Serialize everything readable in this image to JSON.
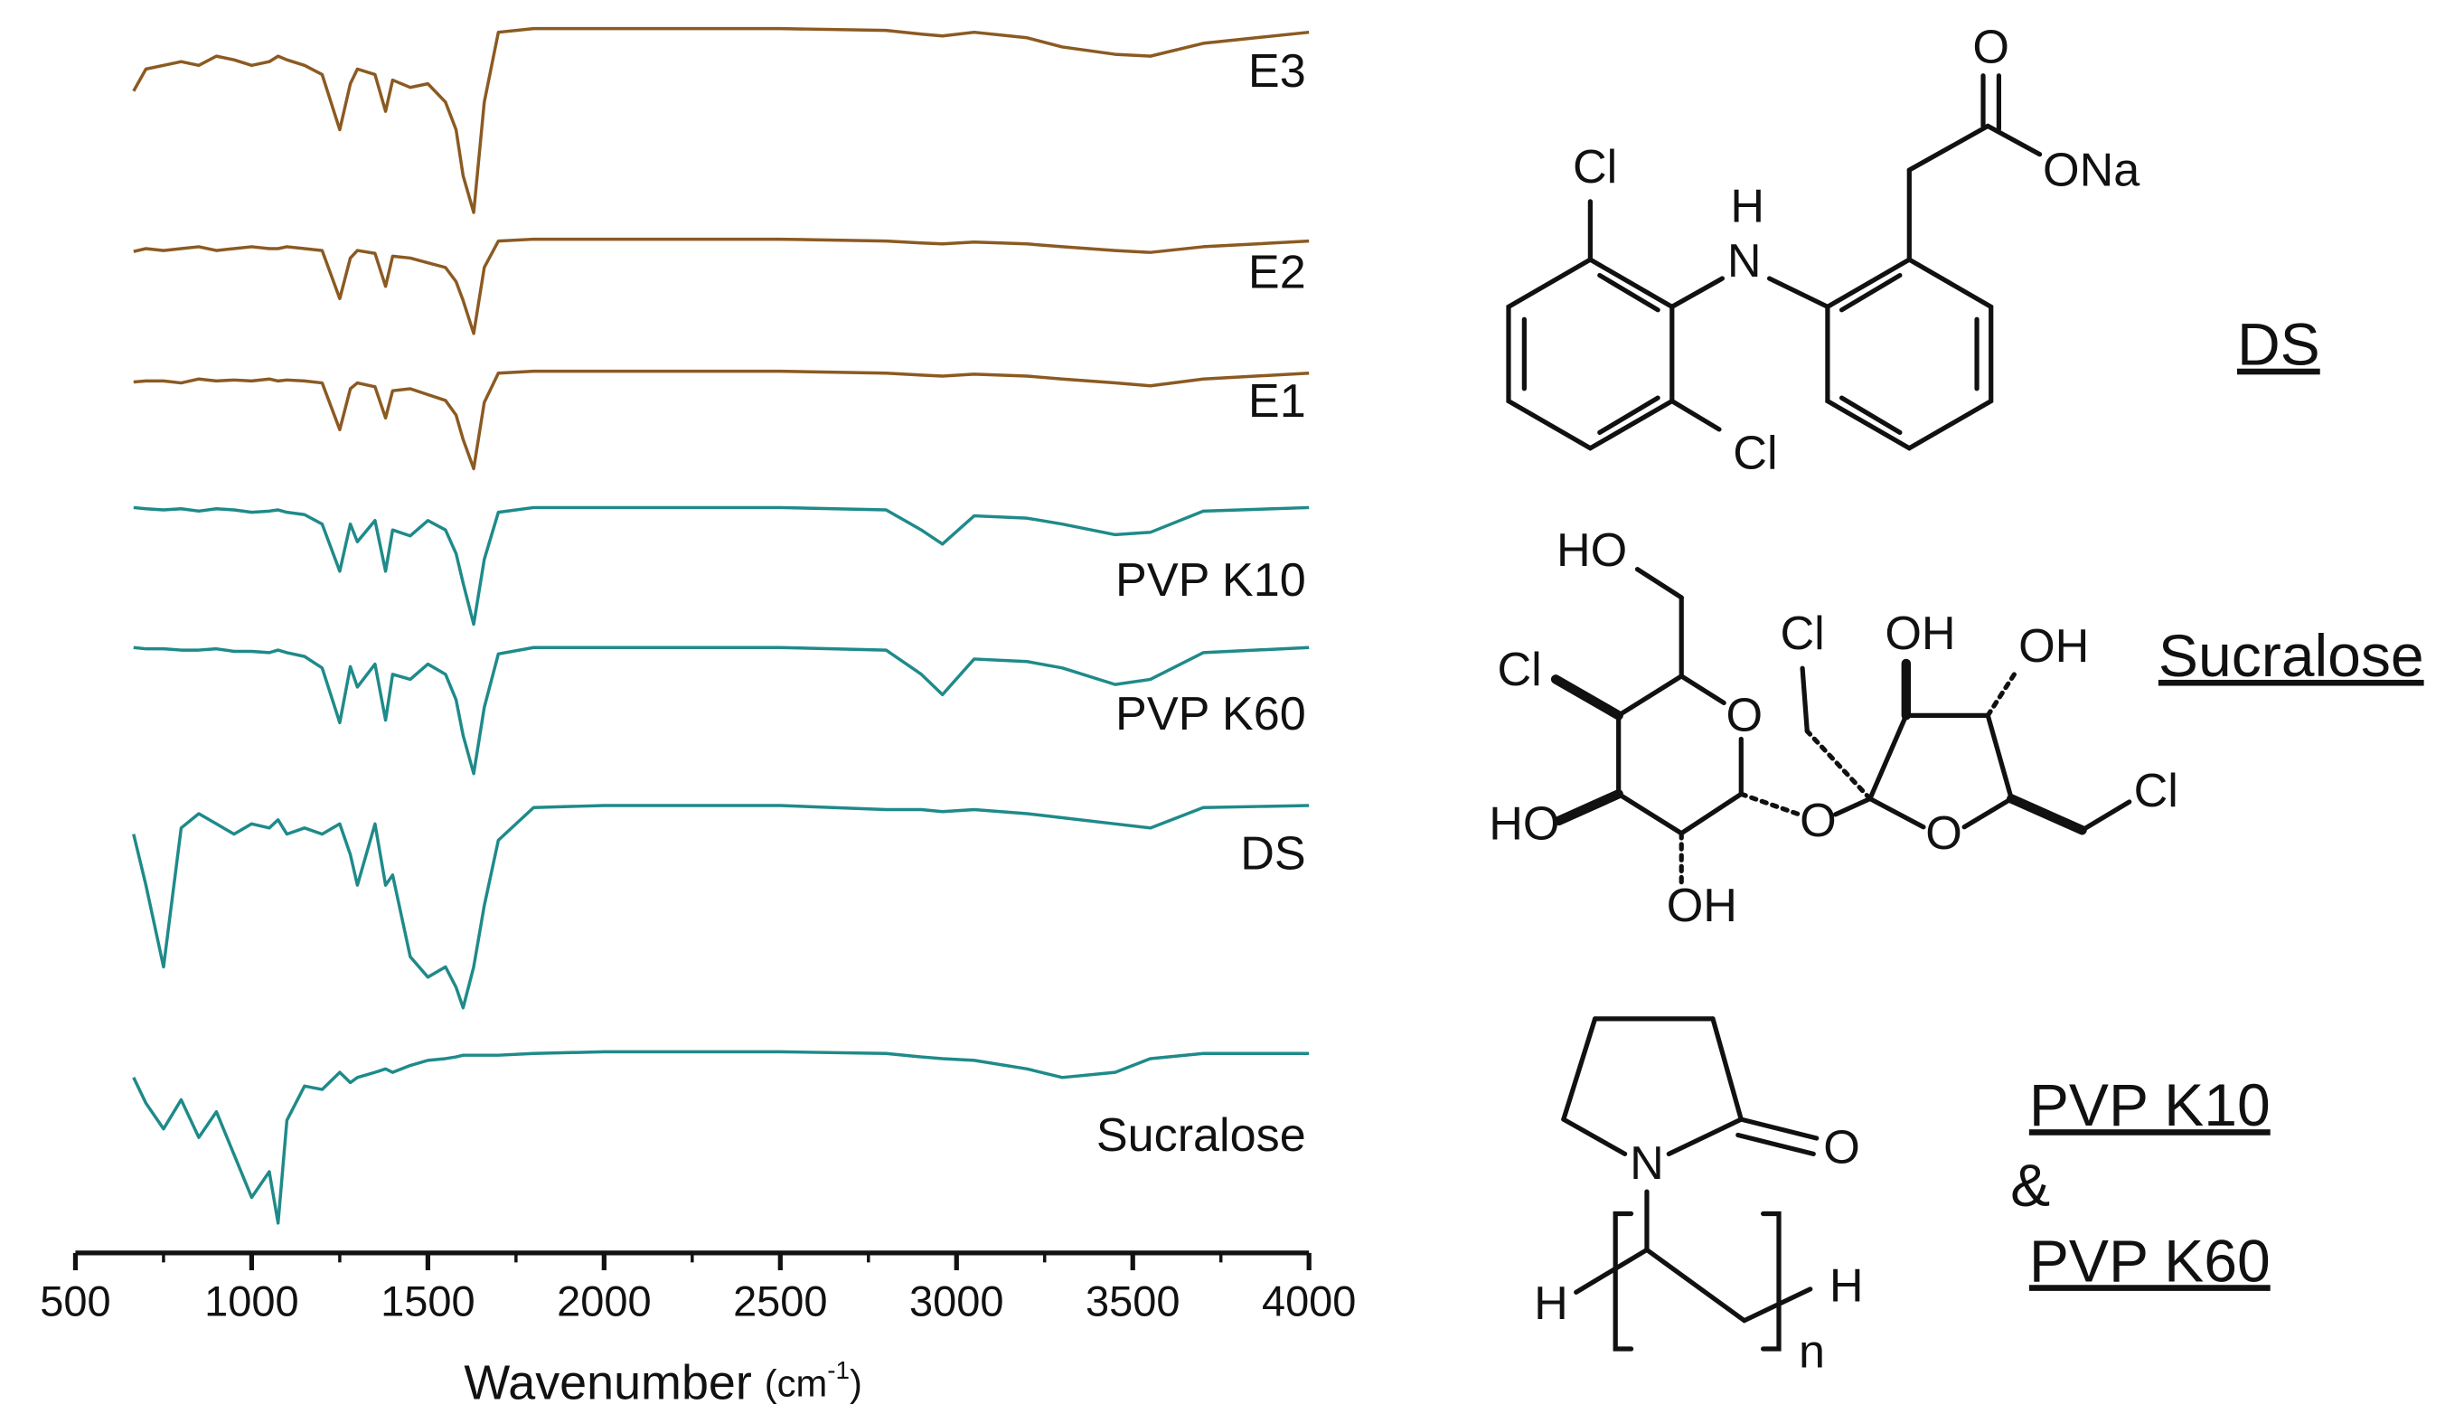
{
  "chart_data": {
    "type": "line",
    "x_label": "Wavenumber",
    "x_unit": [
      "(cm",
      "-1",
      ")"
    ],
    "xlim": [
      500,
      4000
    ],
    "xticks": [
      500,
      1000,
      1500,
      2000,
      2500,
      3000,
      3500,
      4000
    ],
    "ylim": [
      0,
      100
    ],
    "x": [
      665,
      700,
      750,
      800,
      850,
      900,
      950,
      1000,
      1050,
      1075,
      1100,
      1150,
      1200,
      1250,
      1280,
      1300,
      1350,
      1380,
      1400,
      1450,
      1500,
      1550,
      1580,
      1600,
      1630,
      1660,
      1700,
      1800,
      2000,
      2500,
      2800,
      2900,
      2960,
      3050,
      3200,
      3300,
      3450,
      3550,
      3700,
      4000
    ],
    "series": [
      {
        "name": "E3",
        "color": "#8b5a22",
        "values": [
          66,
          78,
          80,
          82,
          80,
          85,
          83,
          80,
          82,
          85,
          83,
          80,
          75,
          45,
          70,
          78,
          75,
          55,
          72,
          68,
          70,
          60,
          45,
          20,
          0,
          60,
          98,
          100,
          100,
          100,
          99,
          97,
          96,
          98,
          95,
          90,
          86,
          85,
          92,
          98
        ]
      },
      {
        "name": "E2",
        "color": "#8b5a22",
        "values": [
          87,
          90,
          88,
          90,
          92,
          88,
          90,
          92,
          90,
          90,
          92,
          90,
          88,
          37,
          80,
          88,
          85,
          50,
          82,
          80,
          75,
          70,
          55,
          35,
          0,
          70,
          98,
          100,
          100,
          100,
          98,
          96,
          95,
          97,
          95,
          92,
          88,
          86,
          92,
          98
        ]
      },
      {
        "name": "E1",
        "color": "#8b5a22",
        "values": [
          89,
          90,
          90,
          88,
          92,
          90,
          91,
          90,
          92,
          90,
          91,
          90,
          88,
          40,
          82,
          88,
          84,
          52,
          80,
          82,
          76,
          70,
          55,
          30,
          0,
          68,
          98,
          100,
          100,
          100,
          98,
          96,
          95,
          97,
          95,
          92,
          88,
          85,
          92,
          98
        ]
      },
      {
        "name": "PVP K10",
        "color": "#1f8a8a",
        "values": [
          99,
          98,
          97,
          98,
          96,
          98,
          97,
          95,
          96,
          97,
          95,
          93,
          85,
          45,
          85,
          70,
          88,
          45,
          80,
          75,
          88,
          80,
          60,
          35,
          0,
          55,
          95,
          99,
          99,
          99,
          97,
          80,
          68,
          92,
          90,
          85,
          76,
          78,
          96,
          99
        ]
      },
      {
        "name": "PVP K60",
        "color": "#1f8a8a",
        "values": [
          99,
          98,
          98,
          97,
          97,
          98,
          96,
          96,
          95,
          97,
          95,
          92,
          83,
          40,
          84,
          68,
          86,
          42,
          78,
          74,
          86,
          78,
          58,
          30,
          0,
          52,
          94,
          99,
          99,
          99,
          97,
          78,
          62,
          90,
          88,
          83,
          70,
          74,
          95,
          99
        ]
      },
      {
        "name": "DS",
        "color": "#1f8a8a",
        "values": [
          85,
          60,
          20,
          88,
          95,
          90,
          85,
          90,
          88,
          92,
          85,
          88,
          85,
          90,
          75,
          60,
          90,
          60,
          65,
          25,
          15,
          20,
          10,
          0,
          20,
          50,
          82,
          98,
          99,
          99,
          97,
          97,
          96,
          97,
          95,
          93,
          90,
          88,
          98,
          99
        ]
      },
      {
        "name": "Sucralose",
        "color": "#1f8a8a",
        "values": [
          85,
          70,
          55,
          72,
          50,
          65,
          40,
          15,
          30,
          0,
          60,
          80,
          78,
          88,
          82,
          85,
          88,
          90,
          88,
          92,
          95,
          96,
          97,
          98,
          98,
          98,
          98,
          99,
          100,
          100,
          99,
          97,
          96,
          95,
          90,
          85,
          88,
          96,
          99,
          99
        ]
      }
    ]
  },
  "structures": [
    {
      "name": "DS",
      "atoms": [
        "Cl",
        "H",
        "N",
        "Cl",
        "O",
        "ONa"
      ]
    },
    {
      "name": "Sucralose",
      "atoms": [
        "HO",
        "Cl",
        "O",
        "HO",
        "OH",
        "O",
        "Cl",
        "OH",
        "OH",
        "O",
        "Cl"
      ]
    },
    {
      "name": [
        "PVP K10",
        "&",
        "PVP K60"
      ],
      "atoms": [
        "N",
        "O",
        "H",
        "H",
        "n"
      ]
    }
  ]
}
